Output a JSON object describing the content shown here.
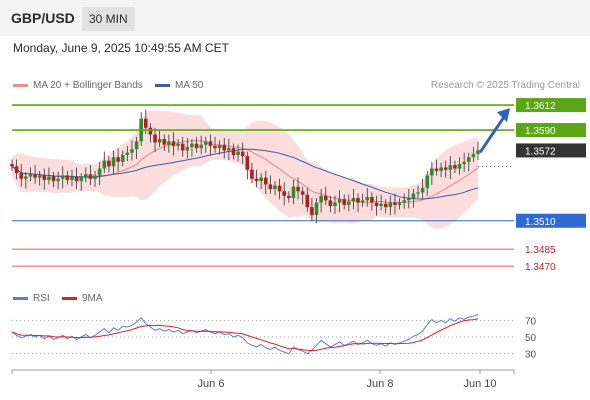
{
  "header": {
    "symbol": "GBP/USD",
    "timeframe": "30 MIN",
    "datetime": "Monday, June 9, 2025 10:49:55 AM CET"
  },
  "legend_main": [
    {
      "label": "MA 20 + Bollinger Bands",
      "color": "#f08c8c"
    },
    {
      "label": "MA 50",
      "color": "#3a5ea8"
    }
  ],
  "legend_rsi": [
    {
      "label": "RSI",
      "color": "#5b7fd6"
    },
    {
      "label": "9MA",
      "color": "#e02020"
    }
  ],
  "copyright": "Research © 2025 Trading Central",
  "colors": {
    "resistance": "#5aa614",
    "current": "#333333",
    "pivot": "#2e6ad6",
    "support": "#e06060",
    "bull": "#2e8b2e",
    "bear": "#b02020",
    "arrow": "#2f62b8"
  },
  "chart_data": {
    "type": "candlestick",
    "x_ticks": [
      "Jun 6",
      "Jun 8",
      "Jun 10"
    ],
    "price_range": [
      1.3456,
      1.362
    ],
    "levels": [
      {
        "label": "1.3612",
        "value": 1.3612,
        "kind": "resistance"
      },
      {
        "label": "1.3590",
        "value": 1.359,
        "kind": "resistance"
      },
      {
        "label": "1.3572",
        "value": 1.3572,
        "kind": "current"
      },
      {
        "label": "1.3510",
        "value": 1.351,
        "kind": "pivot"
      },
      {
        "label": "1.3485",
        "value": 1.3485,
        "kind": "support"
      },
      {
        "label": "1.3470",
        "value": 1.347,
        "kind": "support"
      }
    ],
    "forecast_arrow": {
      "from": 1.3572,
      "to": 1.3612
    },
    "closes": [
      1.3558,
      1.3552,
      1.3547,
      1.3549,
      1.3551,
      1.3548,
      1.355,
      1.3546,
      1.3549,
      1.3545,
      1.3547,
      1.355,
      1.3546,
      1.3549,
      1.3545,
      1.3548,
      1.3551,
      1.3547,
      1.355,
      1.3556,
      1.3563,
      1.3558,
      1.3566,
      1.3562,
      1.3568,
      1.357,
      1.3573,
      1.358,
      1.36,
      1.3592,
      1.3586,
      1.3579,
      1.3582,
      1.3577,
      1.358,
      1.3576,
      1.3578,
      1.3572,
      1.3575,
      1.3578,
      1.3574,
      1.3577,
      1.358,
      1.3576,
      1.3574,
      1.3577,
      1.3572,
      1.3574,
      1.3568,
      1.3571,
      1.3567,
      1.3555,
      1.3547,
      1.3545,
      1.3548,
      1.3542,
      1.3538,
      1.3541,
      1.3536,
      1.3532,
      1.353,
      1.354,
      1.3536,
      1.3533,
      1.3522,
      1.3515,
      1.3526,
      1.3532,
      1.3528,
      1.3523,
      1.3526,
      1.3529,
      1.3524,
      1.3527,
      1.353,
      1.3526,
      1.3528,
      1.3531,
      1.3526,
      1.3523,
      1.3525,
      1.3522,
      1.3526,
      1.3524,
      1.3526,
      1.3528,
      1.353,
      1.3534,
      1.3535,
      1.3539,
      1.355,
      1.3556,
      1.3554,
      1.3557,
      1.3555,
      1.3559,
      1.3556,
      1.356,
      1.3562,
      1.3566,
      1.3569,
      1.3572
    ],
    "series": [
      {
        "name": "RSI",
        "range": [
          20,
          80
        ],
        "values": [
          56,
          52,
          49,
          51,
          53,
          50,
          52,
          48,
          51,
          47,
          49,
          52,
          48,
          51,
          47,
          50,
          53,
          49,
          52,
          56,
          60,
          55,
          61,
          58,
          63,
          62,
          64,
          68,
          73,
          66,
          62,
          58,
          60,
          57,
          59,
          56,
          58,
          54,
          56,
          58,
          55,
          57,
          59,
          56,
          54,
          56,
          53,
          54,
          50,
          52,
          49,
          43,
          40,
          38,
          41,
          37,
          35,
          38,
          34,
          32,
          30,
          38,
          35,
          33,
          30,
          34,
          40,
          46,
          42,
          38,
          41,
          44,
          40,
          42,
          45,
          41,
          43,
          46,
          42,
          40,
          42,
          39,
          43,
          41,
          43,
          45,
          47,
          51,
          53,
          57,
          65,
          71,
          67,
          70,
          67,
          72,
          69,
          73,
          71,
          74,
          75,
          77
        ]
      }
    ],
    "rsi_ticks": [
      70,
      50,
      30
    ]
  }
}
